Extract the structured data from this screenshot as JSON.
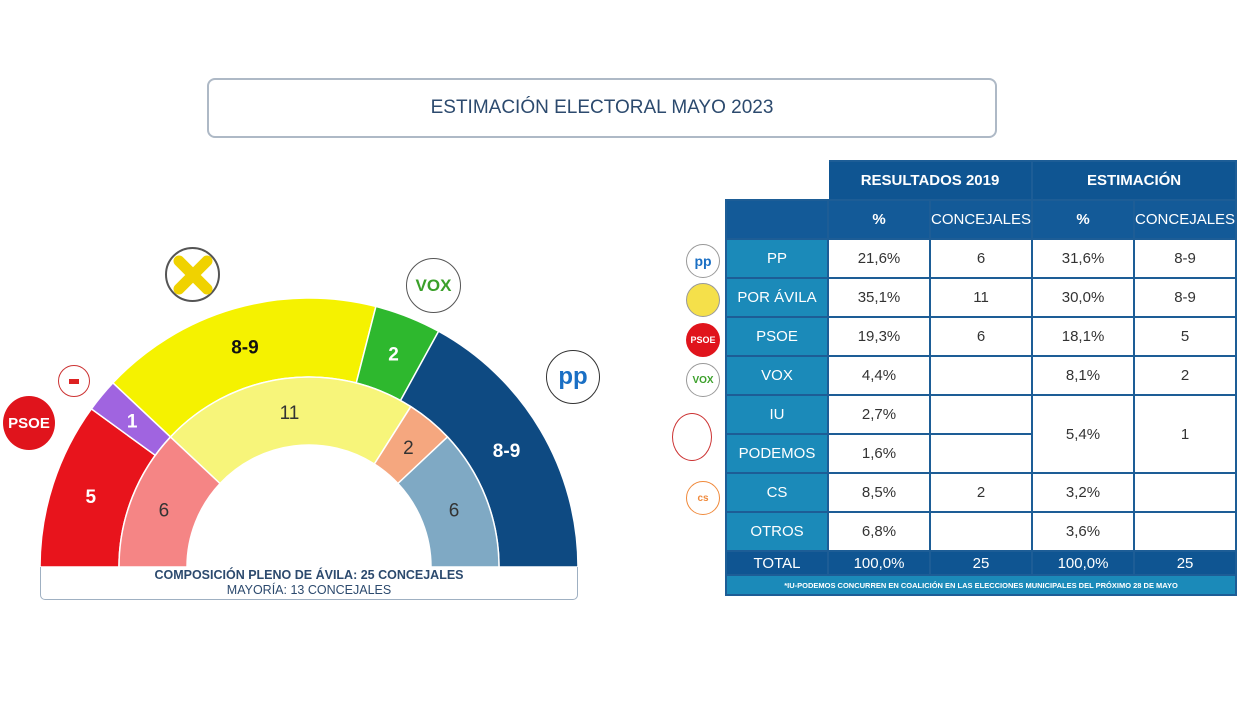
{
  "title": "ESTIMACIÓN ELECTORAL MAYO 2023",
  "chart_data": [
    {
      "type": "pie",
      "variant": "hemicycle",
      "ring": "outer",
      "series_label": "Estimación",
      "slices": [
        {
          "party": "PSOE",
          "label": "5",
          "value": 5,
          "color": "#e8141c",
          "text_color": "#ffffff"
        },
        {
          "party": "IU-PODEMOS",
          "label": "1",
          "value": 1,
          "color": "#a064e0",
          "text_color": "#ffffff"
        },
        {
          "party": "POR ÁVILA",
          "label": "8-9",
          "value": 8.5,
          "color": "#f5f200",
          "text_color": "#111111"
        },
        {
          "party": "VOX",
          "label": "2",
          "value": 2,
          "color": "#2eb82e",
          "text_color": "#ffffff"
        },
        {
          "party": "PP",
          "label": "8-9",
          "value": 8.5,
          "color": "#0e4a82",
          "text_color": "#ffffff"
        }
      ]
    },
    {
      "type": "pie",
      "variant": "hemicycle",
      "ring": "inner",
      "series_label": "Resultados 2019",
      "slices": [
        {
          "party": "PSOE",
          "label": "6",
          "value": 6,
          "color": "#f58585",
          "text_color": "#333333"
        },
        {
          "party": "POR ÁVILA",
          "label": "11",
          "value": 11,
          "color": "#f7f57a",
          "text_color": "#333333"
        },
        {
          "party": "CS",
          "label": "2",
          "value": 2,
          "color": "#f5a77f",
          "text_color": "#333333"
        },
        {
          "party": "PP",
          "label": "6",
          "value": 6,
          "color": "#7fa9c4",
          "text_color": "#333333"
        }
      ]
    }
  ],
  "caption": {
    "line1": "COMPOSICIÓN PLENO DE ÁVILA: 25 CONCEJALES",
    "line2": "MAYORÍA: 13 CONCEJALES"
  },
  "logos": {
    "psoe": "PSOE",
    "vox": "VOX",
    "pp": "pp"
  },
  "table": {
    "group_headers": [
      "RESULTADOS 2019",
      "ESTIMACIÓN"
    ],
    "sub_headers": [
      "%",
      "CONCEJALES",
      "%",
      "CONCEJALES"
    ],
    "rows": [
      {
        "party": "PP",
        "r19_pct": "21,6%",
        "r19_seats": "6",
        "est_pct": "31,6%",
        "est_seats": "8-9"
      },
      {
        "party": "POR ÁVILA",
        "r19_pct": "35,1%",
        "r19_seats": "11",
        "est_pct": "30,0%",
        "est_seats": "8-9"
      },
      {
        "party": "PSOE",
        "r19_pct": "19,3%",
        "r19_seats": "6",
        "est_pct": "18,1%",
        "est_seats": "5"
      },
      {
        "party": "VOX",
        "r19_pct": "4,4%",
        "r19_seats": "",
        "est_pct": "8,1%",
        "est_seats": "2"
      },
      {
        "party": "IU",
        "r19_pct": "2,7%",
        "r19_seats": "",
        "est_pct": "5,4%",
        "est_seats": "1"
      },
      {
        "party": "PODEMOS",
        "r19_pct": "1,6%",
        "r19_seats": ""
      },
      {
        "party": "CS",
        "r19_pct": "8,5%",
        "r19_seats": "2",
        "est_pct": "3,2%",
        "est_seats": ""
      },
      {
        "party": "OTROS",
        "r19_pct": "6,8%",
        "r19_seats": "",
        "est_pct": "3,6%",
        "est_seats": ""
      }
    ],
    "total": {
      "label": "TOTAL",
      "r19_pct": "100,0%",
      "r19_seats": "25",
      "est_pct": "100,0%",
      "est_seats": "25"
    },
    "note": "*IU-PODEMOS CONCURREN EN COALICIÓN EN LAS ELECCIONES MUNICIPALES DEL PRÓXIMO 28 DE MAYO"
  }
}
